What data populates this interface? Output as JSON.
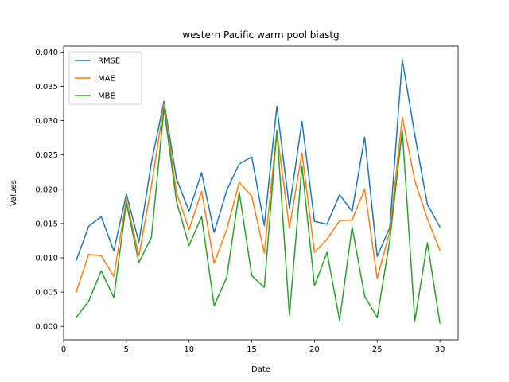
{
  "chart_data": {
    "type": "line",
    "title": "western Pacific warm pool biastg",
    "xlabel": "Date",
    "ylabel": "Values",
    "xlim": [
      0.0,
      31.45
    ],
    "ylim": [
      -0.00195,
      0.04085
    ],
    "xticks": [
      0,
      5,
      10,
      15,
      20,
      25,
      30
    ],
    "xtick_labels": [
      "0",
      "5",
      "10",
      "15",
      "20",
      "25",
      "30"
    ],
    "yticks": [
      0.0,
      0.005,
      0.01,
      0.015,
      0.02,
      0.025,
      0.03,
      0.035,
      0.04
    ],
    "ytick_labels": [
      "0.000",
      "0.005",
      "0.010",
      "0.015",
      "0.020",
      "0.025",
      "0.030",
      "0.035",
      "0.040"
    ],
    "grid": false,
    "legend_position": "top-left",
    "x": [
      1,
      2,
      3,
      4,
      5,
      6,
      7,
      8,
      9,
      10,
      11,
      12,
      13,
      14,
      15,
      16,
      17,
      18,
      19,
      20,
      21,
      22,
      23,
      24,
      25,
      26,
      27,
      28,
      29,
      30
    ],
    "series": [
      {
        "name": "RMSE",
        "color": "#1f77b4",
        "values": [
          0.0096,
          0.0146,
          0.016,
          0.011,
          0.0193,
          0.0123,
          0.0239,
          0.0328,
          0.0215,
          0.0168,
          0.0224,
          0.0137,
          0.0198,
          0.0237,
          0.0247,
          0.0147,
          0.0321,
          0.0172,
          0.0299,
          0.0153,
          0.0149,
          0.0192,
          0.0168,
          0.0276,
          0.0102,
          0.0144,
          0.0389,
          0.0279,
          0.0178,
          0.0145
        ]
      },
      {
        "name": "MAE",
        "color": "#ff7f0e",
        "values": [
          0.005,
          0.0105,
          0.0103,
          0.0073,
          0.0185,
          0.0103,
          0.0205,
          0.0324,
          0.0195,
          0.0141,
          0.0197,
          0.0092,
          0.0141,
          0.021,
          0.019,
          0.0107,
          0.0285,
          0.0143,
          0.0253,
          0.0108,
          0.0127,
          0.0154,
          0.0155,
          0.02,
          0.007,
          0.0138,
          0.0305,
          0.0212,
          0.0157,
          0.0111
        ]
      },
      {
        "name": "MBE",
        "color": "#2ca02c",
        "values": [
          0.0013,
          0.0037,
          0.0081,
          0.0042,
          0.018,
          0.0093,
          0.013,
          0.0318,
          0.0182,
          0.0118,
          0.016,
          0.003,
          0.0071,
          0.0196,
          0.0074,
          0.0057,
          0.0286,
          0.0016,
          0.0234,
          0.0059,
          0.0108,
          0.0009,
          0.0145,
          0.0044,
          0.0013,
          0.0125,
          0.0286,
          0.0008,
          0.0122,
          0.0005
        ]
      }
    ]
  }
}
